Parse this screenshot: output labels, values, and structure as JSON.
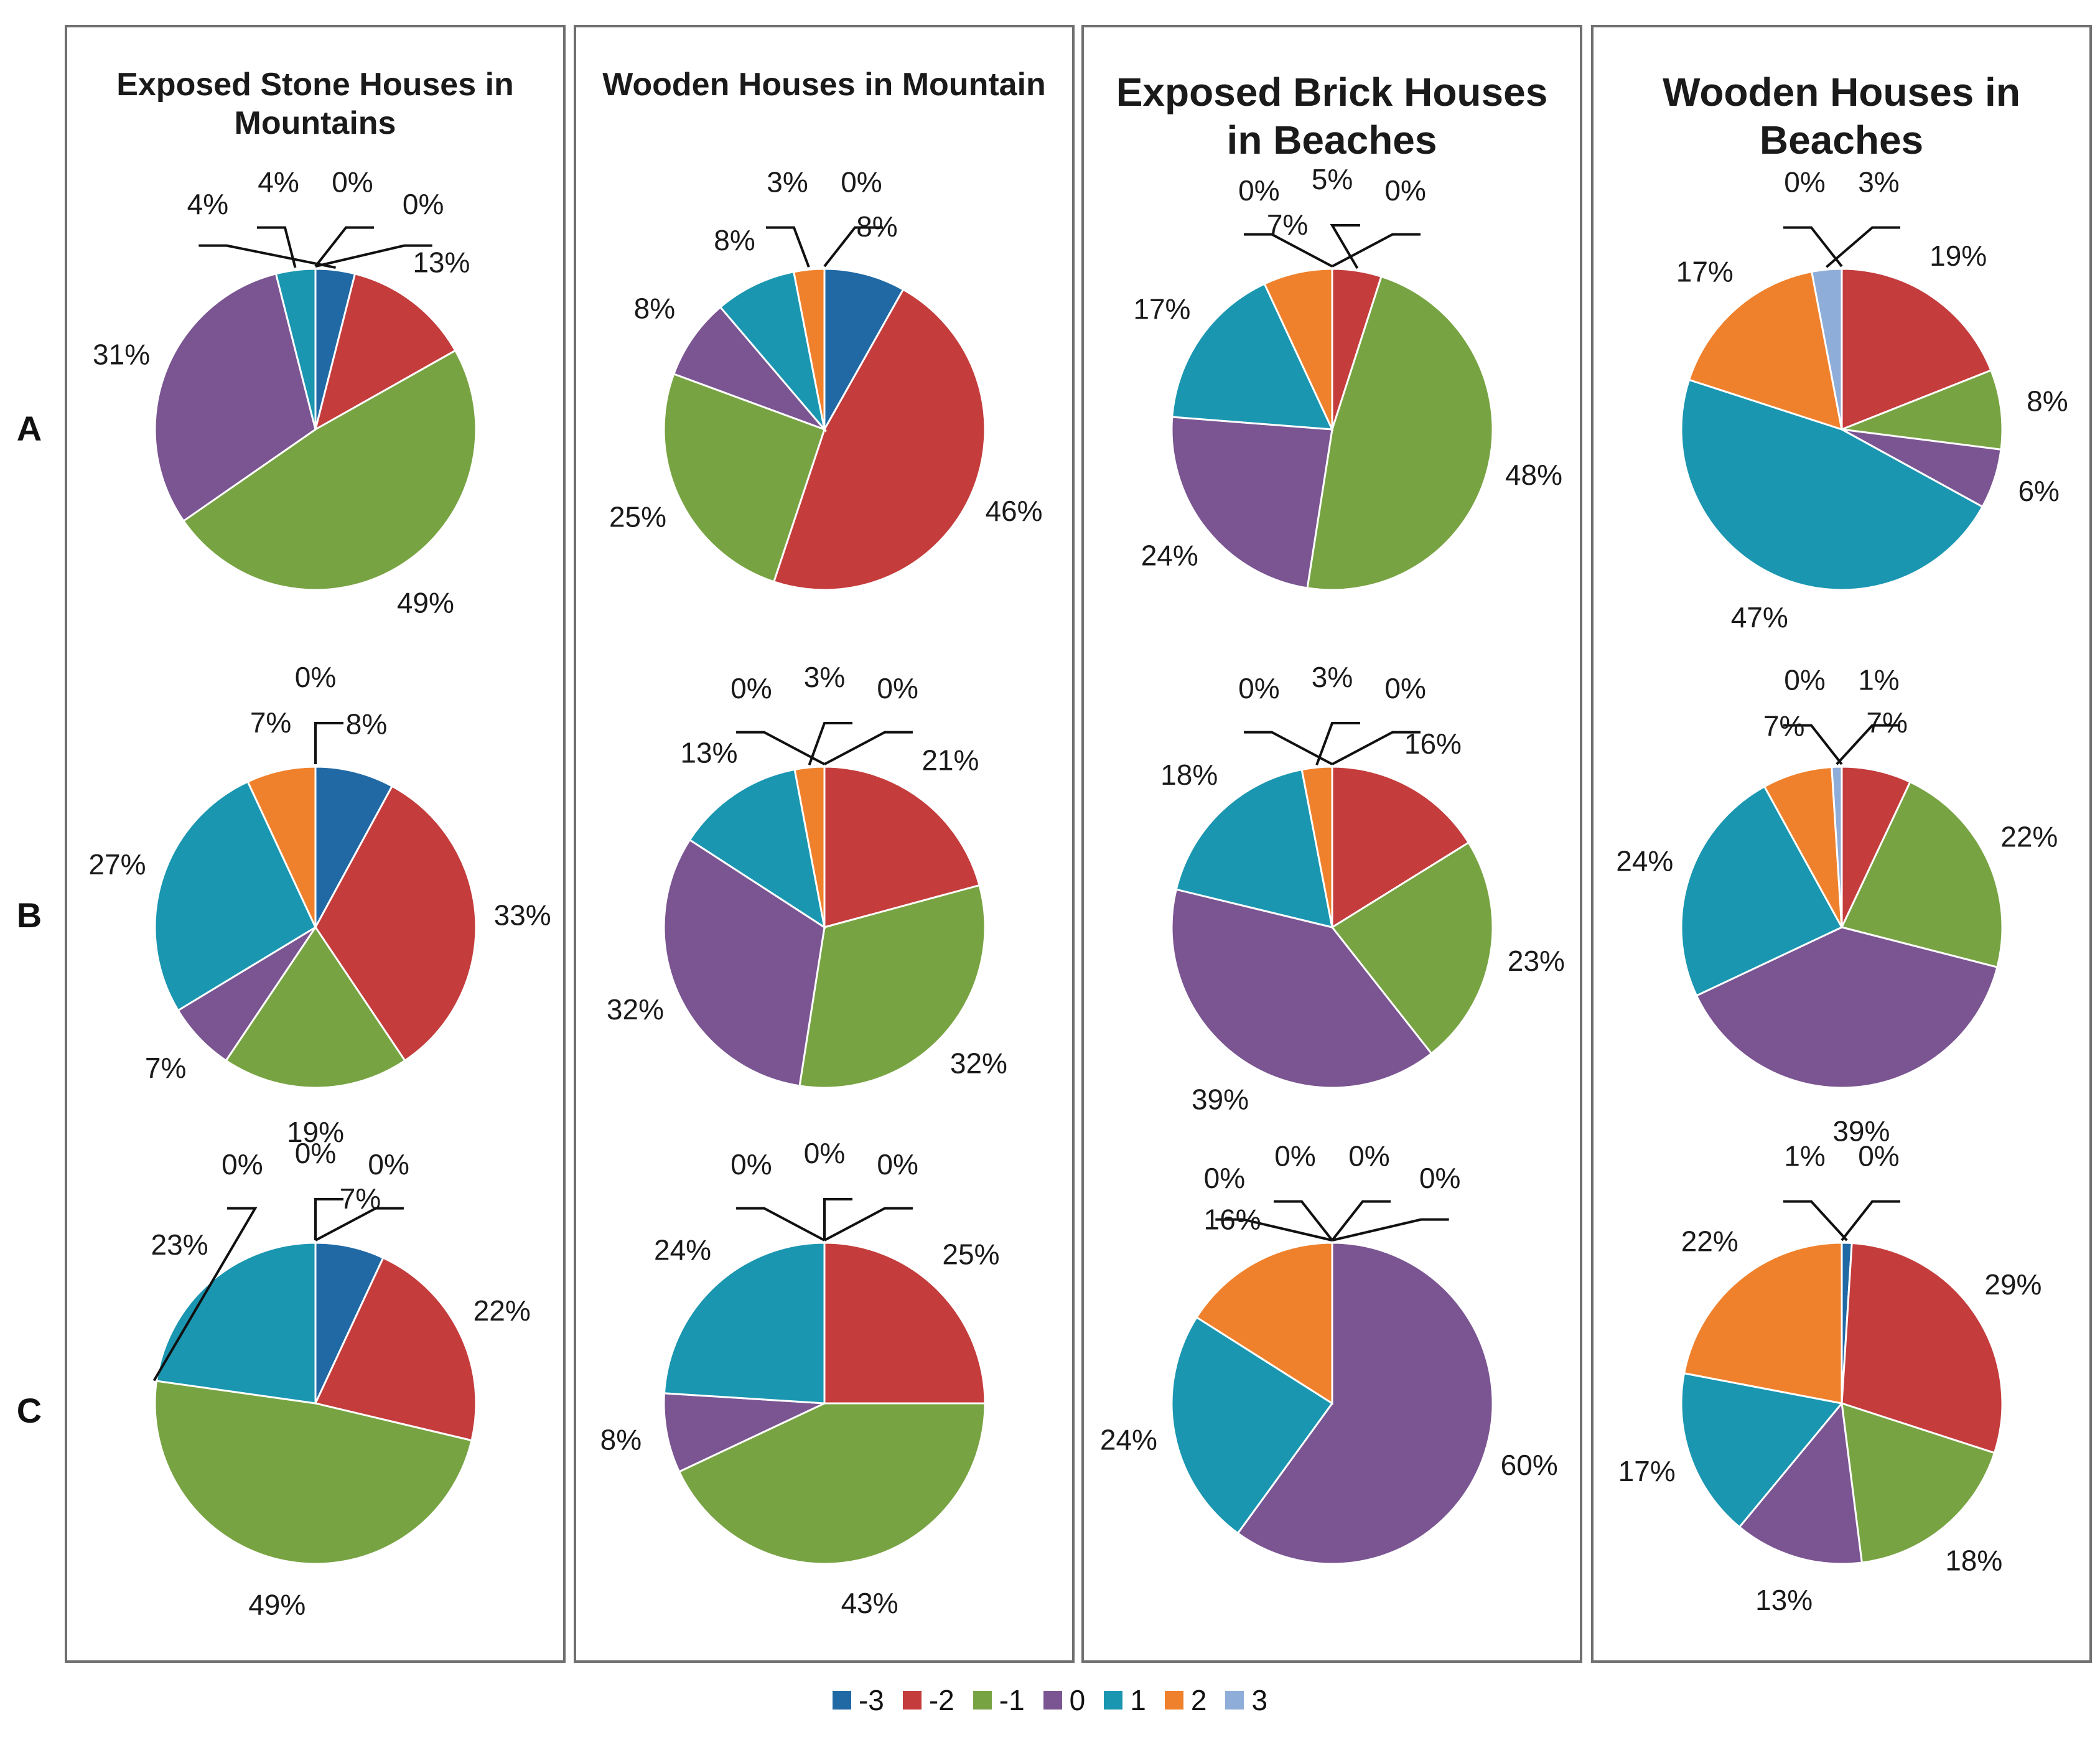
{
  "chart_data": {
    "type": "pie",
    "legend_position": "bottom",
    "series_keys": [
      "-3",
      "-2",
      "-1",
      "0",
      "1",
      "2",
      "3"
    ],
    "colors": [
      "#2169a5",
      "#c43c3c",
      "#78a343",
      "#7a5591",
      "#1a96b0",
      "#f0812c",
      "#8fadd9"
    ],
    "columns": [
      {
        "title": "Exposed Stone Houses in Mountains",
        "size": "small"
      },
      {
        "title": "Wooden Houses in Mountain",
        "size": "small"
      },
      {
        "title": "Exposed Brick Houses in Beaches",
        "size": "large"
      },
      {
        "title": "Wooden Houses in Beaches",
        "size": "large"
      }
    ],
    "rows": [
      "A",
      "B",
      "C"
    ],
    "pies": [
      [
        {
          "values": [
            4,
            13,
            49,
            31,
            4,
            0,
            0
          ],
          "labels": [
            "4%",
            "13%",
            "49%",
            "31%",
            "4%",
            "0%",
            "0%"
          ]
        },
        {
          "values": [
            8,
            46,
            25,
            8,
            8,
            3,
            0
          ],
          "labels": [
            "8%",
            "46%",
            "25%",
            "8%",
            "8%",
            "3%",
            "0%"
          ]
        },
        {
          "values": [
            0,
            5,
            48,
            24,
            17,
            7,
            0
          ],
          "labels": [
            "0%",
            "5%",
            "48%",
            "24%",
            "17%",
            "7%",
            "0%"
          ]
        },
        {
          "values": [
            0,
            19,
            8,
            6,
            47,
            17,
            3
          ],
          "labels": [
            "0%",
            "19%",
            "8%",
            "6%",
            "47%",
            "17%",
            "3%"
          ]
        }
      ],
      [
        {
          "values": [
            8,
            33,
            19,
            7,
            27,
            7,
            0
          ],
          "labels": [
            "8%",
            "33%",
            "19%",
            "7%",
            "27%",
            "7%",
            "0%"
          ]
        },
        {
          "values": [
            0,
            21,
            32,
            32,
            13,
            3,
            0
          ],
          "labels": [
            "0%",
            "21%",
            "32%",
            "32%",
            "13%",
            "3%",
            "0%"
          ]
        },
        {
          "values": [
            0,
            16,
            23,
            39,
            18,
            3,
            0
          ],
          "labels": [
            "0%",
            "16%",
            "23%",
            "39%",
            "18%",
            "3%",
            "0%"
          ]
        },
        {
          "values": [
            0,
            7,
            22,
            39,
            24,
            7,
            1
          ],
          "labels": [
            "0%",
            "7%",
            "22%",
            "39%",
            "24%",
            "7%",
            "1%"
          ]
        }
      ],
      [
        {
          "values": [
            7,
            22,
            49,
            0,
            23,
            0,
            0
          ],
          "labels": [
            "7%",
            "22%",
            "49%",
            "0%",
            "23%",
            "0%",
            "0%"
          ]
        },
        {
          "values": [
            0,
            25,
            43,
            8,
            24,
            0,
            0
          ],
          "labels": [
            "0%",
            "25%",
            "43%",
            "8%",
            "24%",
            "0%",
            "0%"
          ]
        },
        {
          "values": [
            0,
            0,
            0,
            60,
            24,
            16,
            0
          ],
          "labels": [
            "0%",
            "0%",
            "0%",
            "60%",
            "24%",
            "16%",
            "0%"
          ]
        },
        {
          "values": [
            1,
            29,
            18,
            13,
            17,
            22,
            0
          ],
          "labels": [
            "1%",
            "29%",
            "18%",
            "13%",
            "17%",
            "22%",
            "0%"
          ]
        }
      ]
    ]
  }
}
